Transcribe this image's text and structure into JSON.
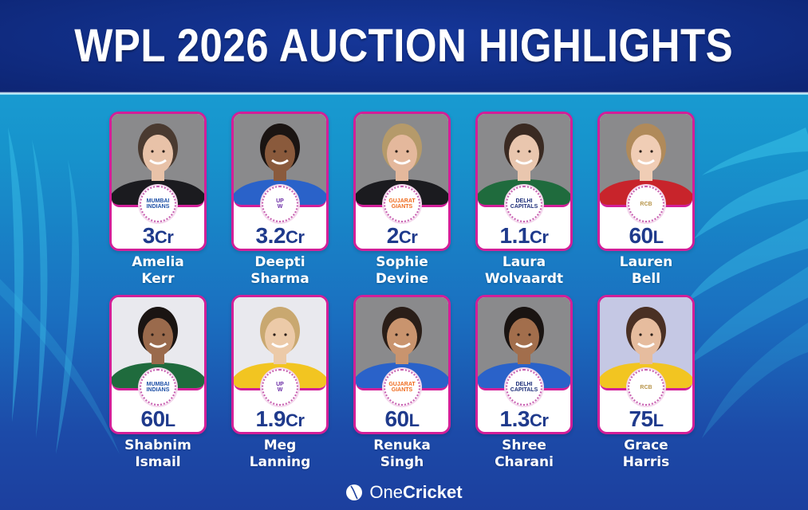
{
  "header": {
    "title": "WPL 2026 AUCTION HIGHLIGHTS"
  },
  "colors": {
    "header_bg": "#112e86",
    "card_border": "#d21f98",
    "price_text": "#1f3a8c",
    "name_text": "#ffffff",
    "bg_top": "#19a6d8",
    "bg_bottom": "#1c3f9e"
  },
  "players": [
    {
      "first": "Amelia",
      "last": "Kerr",
      "price_value": "3",
      "price_unit": "Cr",
      "team": "Mumbai Indians",
      "team_icon": "mumbai-indians-logo-icon",
      "jersey": "black"
    },
    {
      "first": "Deepti",
      "last": "Sharma",
      "price_value": "3.2",
      "price_unit": "Cr",
      "team": "UP Warriorz",
      "team_icon": "up-warriorz-logo-icon",
      "jersey": "blue"
    },
    {
      "first": "Sophie",
      "last": "Devine",
      "price_value": "2",
      "price_unit": "Cr",
      "team": "Gujarat Giants",
      "team_icon": "gujarat-giants-logo-icon",
      "jersey": "black"
    },
    {
      "first": "Laura",
      "last": "Wolvaardt",
      "price_value": "1.1",
      "price_unit": "Cr",
      "team": "Delhi Capitals",
      "team_icon": "delhi-capitals-logo-icon",
      "jersey": "green"
    },
    {
      "first": "Lauren",
      "last": "Bell",
      "price_value": "60",
      "price_unit": "L",
      "team": "Royal Challengers Bengaluru",
      "team_icon": "rcb-logo-icon",
      "jersey": "red"
    },
    {
      "first": "Shabnim",
      "last": "Ismail",
      "price_value": "60",
      "price_unit": "L",
      "team": "Mumbai Indians",
      "team_icon": "mumbai-indians-logo-icon",
      "jersey": "green"
    },
    {
      "first": "Meg",
      "last": "Lanning",
      "price_value": "1.9",
      "price_unit": "Cr",
      "team": "UP Warriorz",
      "team_icon": "up-warriorz-logo-icon",
      "jersey": "yellow"
    },
    {
      "first": "Renuka",
      "last": "Singh",
      "price_value": "60",
      "price_unit": "L",
      "team": "Gujarat Giants",
      "team_icon": "gujarat-giants-logo-icon",
      "jersey": "blue"
    },
    {
      "first": "Shree",
      "last": "Charani",
      "price_value": "1.3",
      "price_unit": "Cr",
      "team": "Delhi Capitals",
      "team_icon": "delhi-capitals-logo-icon",
      "jersey": "blue"
    },
    {
      "first": "Grace",
      "last": "Harris",
      "price_value": "75",
      "price_unit": "L",
      "team": "Royal Challengers Bengaluru",
      "team_icon": "rcb-logo-icon",
      "jersey": "yellow"
    }
  ],
  "footer": {
    "brand_light": "One",
    "brand_bold": "Cricket",
    "icon": "cricket-ball-icon"
  }
}
